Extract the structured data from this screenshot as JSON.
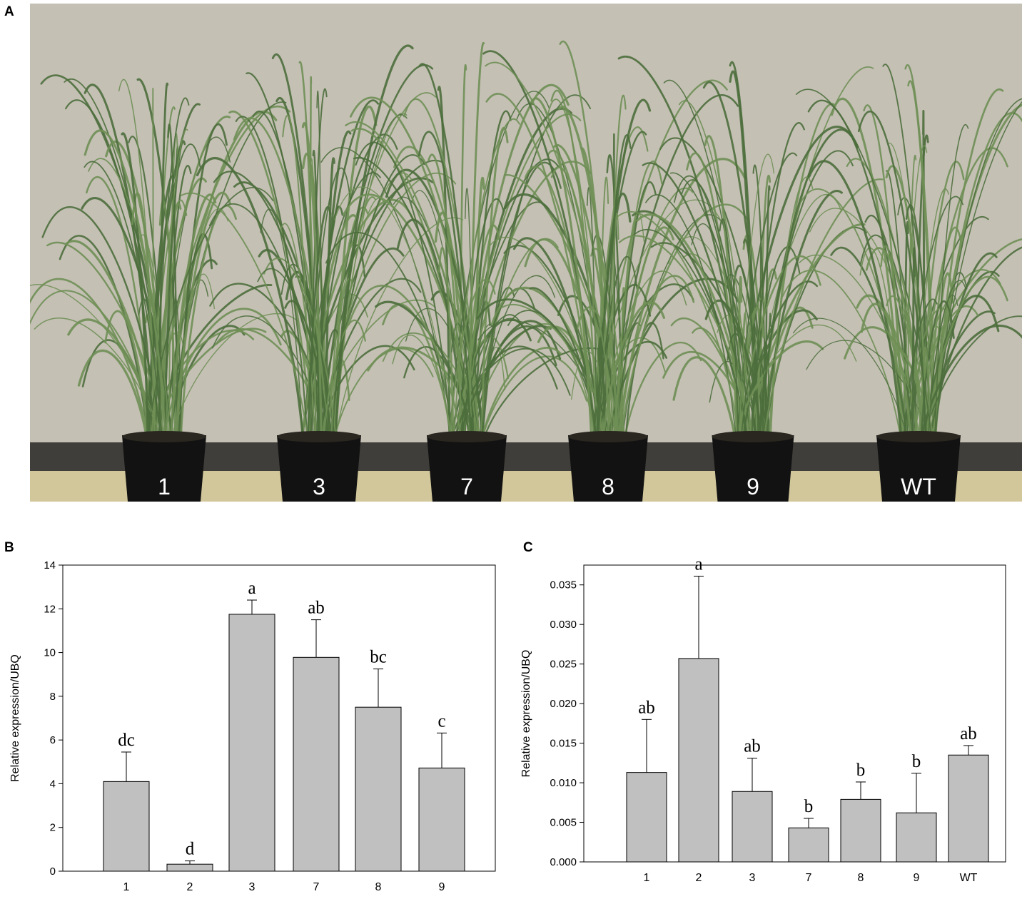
{
  "panels": {
    "a": "A",
    "b": "B",
    "c": "C"
  },
  "photo": {
    "pot_labels": [
      "1",
      "3",
      "7",
      "8",
      "9",
      "WT"
    ],
    "colors": {
      "wall": "#c4c0b4",
      "baseboard": "#3f3e3a",
      "floor": "#d2c79a",
      "pot": "#121212",
      "leaf": "#6f8f55",
      "leaf_dark": "#4d6e3c"
    }
  },
  "chart_data": [
    {
      "type": "bar",
      "panel": "B",
      "categories": [
        "1",
        "2",
        "3",
        "7",
        "8",
        "9"
      ],
      "values": [
        4.1,
        0.32,
        11.75,
        9.78,
        7.5,
        4.72
      ],
      "errors": [
        1.35,
        0.15,
        0.65,
        1.72,
        1.75,
        1.6
      ],
      "sig_letters": [
        "dc",
        "d",
        "a",
        "ab",
        "bc",
        "c"
      ],
      "ylabel": "Relative expression/UBQ",
      "ylim": [
        0,
        14
      ],
      "yticks": [
        0,
        2,
        4,
        6,
        8,
        10,
        12,
        14
      ],
      "ytick_labels": [
        "0",
        "2",
        "4",
        "6",
        "8",
        "10",
        "12",
        "14"
      ],
      "grid": false,
      "bar_color": "#c0c0c0"
    },
    {
      "type": "bar",
      "panel": "C",
      "categories": [
        "1",
        "2",
        "3",
        "7",
        "8",
        "9",
        "WT"
      ],
      "values": [
        0.0113,
        0.0257,
        0.0089,
        0.0043,
        0.0079,
        0.0062,
        0.0135
      ],
      "errors": [
        0.0067,
        0.0104,
        0.0042,
        0.0012,
        0.0022,
        0.005,
        0.0012
      ],
      "sig_letters": [
        "ab",
        "a",
        "ab",
        "b",
        "b",
        "b",
        "ab"
      ],
      "ylabel": "Relative expression/UBQ",
      "ylim": [
        0,
        0.0375
      ],
      "yticks": [
        0,
        0.005,
        0.01,
        0.015,
        0.02,
        0.025,
        0.03,
        0.035
      ],
      "ytick_labels": [
        "0.000",
        "0.005",
        "0.010",
        "0.015",
        "0.020",
        "0.025",
        "0.030",
        "0.035"
      ],
      "grid": false,
      "bar_color": "#c0c0c0"
    }
  ]
}
